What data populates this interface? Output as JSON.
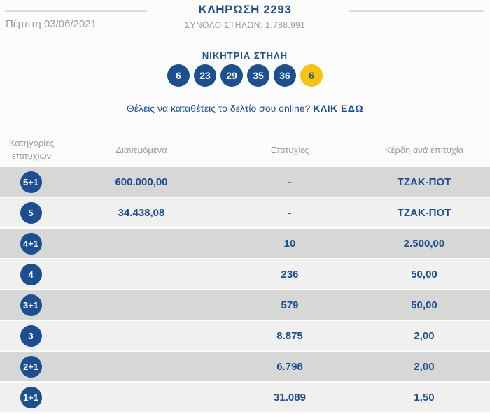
{
  "header": {
    "title": "ΚΛΗΡΩΣΗ 2293",
    "date": "Πέμπτη 03/06/2021",
    "total_columns": "ΣΥΝΟΛΟ ΣΤΗΛΩΝ: 1.788.991"
  },
  "winning": {
    "title": "ΝΙΚΗΤΡΙΑ ΣΤΗΛΗ",
    "numbers": [
      "6",
      "23",
      "29",
      "35",
      "36"
    ],
    "joker": "6"
  },
  "online": {
    "question": "Θέλεις να καταθέτεις το δελτίο σου online?",
    "link_label": "ΚΛΙΚ ΕΔΩ"
  },
  "table": {
    "headers": {
      "category": "Κατηγορίες επιτυχιών",
      "distributed": "Διανεμόμενα",
      "winners": "Επιτυχίες",
      "prize": "Κέρδη ανά επιτυχία"
    },
    "rows": [
      {
        "category": "5+1",
        "distributed": "600.000,00",
        "winners": "-",
        "prize": "ΤΖΑΚ-ΠΟΤ"
      },
      {
        "category": "5",
        "distributed": "34.438,08",
        "winners": "-",
        "prize": "ΤΖΑΚ-ΠΟΤ"
      },
      {
        "category": "4+1",
        "distributed": "",
        "winners": "10",
        "prize": "2.500,00"
      },
      {
        "category": "4",
        "distributed": "",
        "winners": "236",
        "prize": "50,00"
      },
      {
        "category": "3+1",
        "distributed": "",
        "winners": "579",
        "prize": "50,00"
      },
      {
        "category": "3",
        "distributed": "",
        "winners": "8.875",
        "prize": "2,00"
      },
      {
        "category": "2+1",
        "distributed": "",
        "winners": "6.798",
        "prize": "2,00"
      },
      {
        "category": "1+1",
        "distributed": "",
        "winners": "31.089",
        "prize": "1,50"
      }
    ]
  },
  "colors": {
    "accent_navy": "#1b4f91",
    "joker_yellow": "#f6c40e",
    "muted_gray": "#9b9b9b",
    "row_light": "#f0f0ef",
    "row_dark": "#d7d7d6"
  }
}
